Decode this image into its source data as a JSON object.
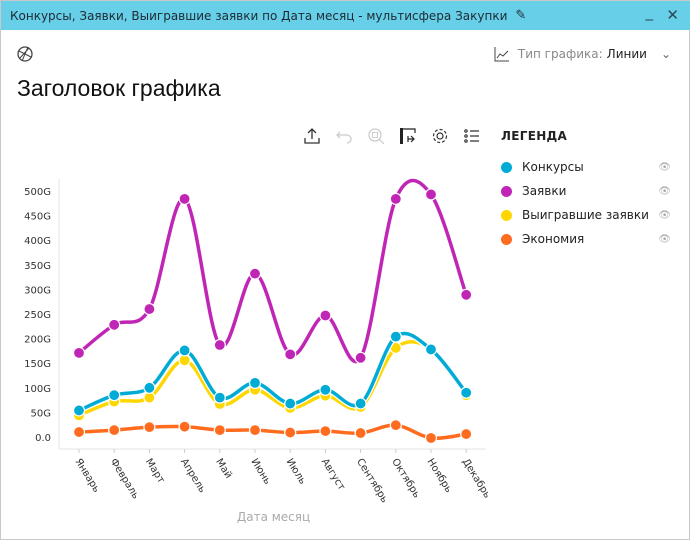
{
  "window": {
    "title": "Конкурсы, Заявки, Выигравшие заявки по Дата месяц - мультисфера Закупки",
    "minimize": "_",
    "close": "✕",
    "edit_icon": "pencil-icon"
  },
  "chart_type": {
    "label": "Тип графика:",
    "value": "Линии"
  },
  "page_title": "Заголовок графика",
  "toolbar": [
    "export-icon",
    "undo-icon",
    "zoom-reset-icon",
    "swap-axes-icon",
    "gear-icon",
    "list-icon"
  ],
  "legend": {
    "title": "ЛЕГЕНДА",
    "items": [
      {
        "label": "Конкурсы",
        "color": "#00acd6"
      },
      {
        "label": "Заявки",
        "color": "#c026b5"
      },
      {
        "label": "Выигравшие заявки",
        "color": "#ffd700"
      },
      {
        "label": "Экономия",
        "color": "#ff6b1f"
      }
    ]
  },
  "chart_data": {
    "type": "line",
    "xlabel": "Дата месяц",
    "ylabel": "",
    "categories": [
      "Январь",
      "Февраль",
      "Март",
      "Апрель",
      "Май",
      "Июнь",
      "Июль",
      "Август",
      "Сентябрь",
      "Октябрь",
      "Ноябрь",
      "Декабрь"
    ],
    "y_ticks": [
      "0.0",
      "50G",
      "100G",
      "150G",
      "200G",
      "250G",
      "300G",
      "350G",
      "400G",
      "450G",
      "500G"
    ],
    "ylim": [
      0,
      500
    ],
    "series": [
      {
        "name": "Заявки",
        "color": "#c026b5",
        "values": [
          171,
          228,
          260,
          484,
          187,
          332,
          168,
          247,
          161,
          484,
          493,
          289
        ]
      },
      {
        "name": "Конкурсы",
        "color": "#00acd6",
        "values": [
          54,
          85,
          100,
          176,
          80,
          110,
          68,
          96,
          68,
          204,
          178,
          90
        ]
      },
      {
        "name": "Выигравшие заявки",
        "color": "#ffd700",
        "values": [
          44,
          72,
          80,
          156,
          67,
          96,
          59,
          84,
          61,
          181,
          179,
          85
        ]
      },
      {
        "name": "Экономия",
        "color": "#ff6b1f",
        "values": [
          10,
          14,
          20,
          21,
          14,
          14,
          9,
          12,
          8,
          24,
          -2,
          6
        ]
      }
    ]
  }
}
